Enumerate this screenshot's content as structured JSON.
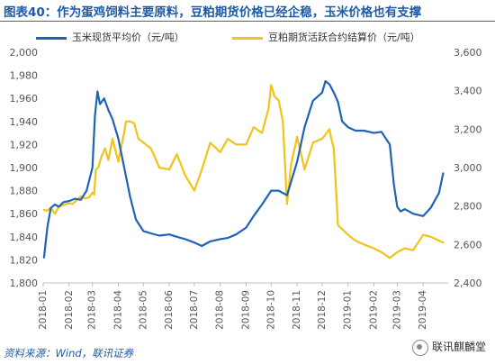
{
  "title": "图表40：作为蛋鸡饲料主要原料，豆粕期货价格已经企稳，玉米价格也有支撑",
  "source": "资料来源：Wind，联讯证券",
  "watermark": "联讯麒麟堂",
  "watermark_icon": "wechat-icon",
  "colors": {
    "corn": "#1f63b5",
    "soymeal": "#f2c318",
    "axis": "#bfbfbf",
    "ticks": "#555555"
  },
  "chart_data": {
    "type": "line",
    "title": "作为蛋鸡饲料主要原料，豆粕期货价格已经企稳，玉米价格也有支撑",
    "xlabel": "",
    "ylabel": "",
    "x_ticks": [
      "2018-01",
      "2018-02",
      "2018-03",
      "2018-04",
      "2018-05",
      "2018-06",
      "2018-07",
      "2018-08",
      "2018-09",
      "2018-10",
      "2018-11",
      "2018-12",
      "2019-01",
      "2019-02",
      "2019-03",
      "2019-04"
    ],
    "y_left": {
      "min": 1800,
      "max": 2000,
      "ticks": [
        "1,800",
        "1,820",
        "1,840",
        "1,860",
        "1,880",
        "1,900",
        "1,920",
        "1,940",
        "1,960",
        "1,980",
        "2,000"
      ]
    },
    "y_right": {
      "min": 2400,
      "max": 3600,
      "ticks": [
        "2,400",
        "2,600",
        "2,800",
        "3,000",
        "3,200",
        "3,400",
        "3,600"
      ]
    },
    "grid": false,
    "legend_position": "top",
    "series": [
      {
        "name": "玉米现货平均价（元/吨）",
        "axis": "left",
        "x": [
          "2018-01-02",
          "2018-01-06",
          "2018-01-10",
          "2018-01-15",
          "2018-01-20",
          "2018-01-25",
          "2018-02-01",
          "2018-02-08",
          "2018-02-15",
          "2018-02-22",
          "2018-03-01",
          "2018-03-04",
          "2018-03-07",
          "2018-03-10",
          "2018-03-15",
          "2018-03-20",
          "2018-03-25",
          "2018-04-01",
          "2018-04-08",
          "2018-04-15",
          "2018-04-22",
          "2018-05-01",
          "2018-05-10",
          "2018-05-20",
          "2018-06-01",
          "2018-06-10",
          "2018-06-20",
          "2018-07-01",
          "2018-07-10",
          "2018-07-20",
          "2018-08-01",
          "2018-08-10",
          "2018-08-20",
          "2018-09-01",
          "2018-09-10",
          "2018-09-20",
          "2018-10-01",
          "2018-10-10",
          "2018-10-20",
          "2018-11-01",
          "2018-11-10",
          "2018-11-20",
          "2018-12-01",
          "2018-12-05",
          "2018-12-10",
          "2018-12-15",
          "2018-12-20",
          "2018-12-25",
          "2019-01-01",
          "2019-01-10",
          "2019-01-20",
          "2019-02-01",
          "2019-02-10",
          "2019-02-20",
          "2019-02-25",
          "2019-03-01",
          "2019-03-05",
          "2019-03-10",
          "2019-03-20",
          "2019-04-01",
          "2019-04-10",
          "2019-04-20",
          "2019-04-25"
        ],
        "values": [
          1822,
          1848,
          1865,
          1868,
          1866,
          1870,
          1871,
          1873,
          1872,
          1880,
          1900,
          1945,
          1966,
          1955,
          1960,
          1950,
          1942,
          1925,
          1900,
          1875,
          1855,
          1845,
          1843,
          1841,
          1842,
          1840,
          1838,
          1835,
          1832,
          1836,
          1838,
          1839,
          1842,
          1848,
          1858,
          1868,
          1880,
          1880,
          1876,
          1905,
          1935,
          1958,
          1965,
          1975,
          1972,
          1965,
          1957,
          1940,
          1935,
          1932,
          1932,
          1930,
          1931,
          1920,
          1885,
          1866,
          1862,
          1864,
          1860,
          1858,
          1865,
          1878,
          1895
        ]
      },
      {
        "name": "豆粕期货活跃合约结算价（元/吨）",
        "axis": "right",
        "x": [
          "2018-01-02",
          "2018-01-05",
          "2018-01-10",
          "2018-01-15",
          "2018-01-20",
          "2018-01-25",
          "2018-02-01",
          "2018-02-05",
          "2018-02-10",
          "2018-02-15",
          "2018-02-20",
          "2018-02-25",
          "2018-03-01",
          "2018-03-03",
          "2018-03-05",
          "2018-03-08",
          "2018-03-12",
          "2018-03-16",
          "2018-03-20",
          "2018-03-25",
          "2018-04-01",
          "2018-04-05",
          "2018-04-08",
          "2018-04-10",
          "2018-04-15",
          "2018-04-20",
          "2018-04-25",
          "2018-05-01",
          "2018-05-10",
          "2018-05-20",
          "2018-06-01",
          "2018-06-10",
          "2018-06-20",
          "2018-07-01",
          "2018-07-10",
          "2018-07-20",
          "2018-08-01",
          "2018-08-10",
          "2018-08-20",
          "2018-09-01",
          "2018-09-10",
          "2018-09-20",
          "2018-09-28",
          "2018-10-01",
          "2018-10-05",
          "2018-10-10",
          "2018-10-15",
          "2018-10-20",
          "2018-10-25",
          "2018-11-01",
          "2018-11-10",
          "2018-11-20",
          "2018-12-01",
          "2018-12-10",
          "2018-12-12",
          "2018-12-15",
          "2018-12-20",
          "2018-12-25",
          "2019-01-01",
          "2019-01-10",
          "2019-01-20",
          "2019-02-01",
          "2019-02-10",
          "2019-02-20",
          "2019-03-01",
          "2019-03-10",
          "2019-03-20",
          "2019-04-01",
          "2019-04-10",
          "2019-04-15",
          "2019-04-20",
          "2019-04-25"
        ],
        "values": [
          2780,
          2775,
          2790,
          2760,
          2800,
          2805,
          2815,
          2810,
          2830,
          2850,
          2840,
          2845,
          2870,
          2860,
          2990,
          3000,
          3060,
          3100,
          3040,
          3150,
          3030,
          3120,
          3180,
          3240,
          3240,
          3230,
          3150,
          3130,
          3100,
          3000,
          2990,
          3070,
          2960,
          2880,
          2990,
          3130,
          3080,
          3150,
          3120,
          3120,
          3210,
          3180,
          3310,
          3430,
          3370,
          3350,
          3240,
          2810,
          3020,
          3160,
          2990,
          3130,
          3150,
          3200,
          3150,
          3100,
          2700,
          2680,
          2650,
          2620,
          2600,
          2580,
          2560,
          2530,
          2560,
          2580,
          2570,
          2650,
          2640,
          2630,
          2620,
          2610
        ]
      }
    ]
  }
}
